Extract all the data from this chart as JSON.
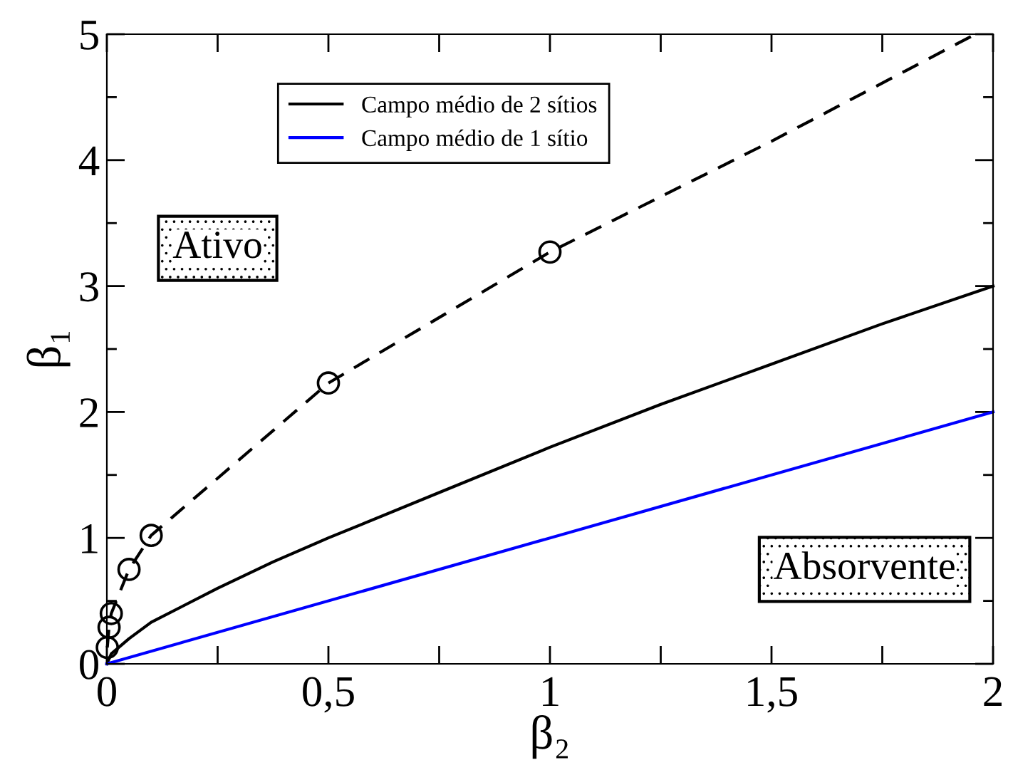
{
  "chart_data": {
    "type": "line",
    "xlabel": "β₂",
    "ylabel": "β₁",
    "xlim": [
      0,
      2
    ],
    "ylim": [
      0,
      5
    ],
    "xticks": [
      0,
      {
        "value": 0.25,
        "label": null
      },
      {
        "value": 0.5,
        "label": "0,5"
      },
      {
        "value": 0.75,
        "label": null
      },
      1,
      {
        "value": 1.25,
        "label": null
      },
      {
        "value": 1.5,
        "label": "1,5"
      },
      {
        "value": 1.75,
        "label": null
      },
      2
    ],
    "yticks": [
      0,
      {
        "value": 0.5,
        "label": null
      },
      1,
      {
        "value": 1.5,
        "label": null
      },
      2,
      {
        "value": 2.5,
        "label": null
      },
      3,
      {
        "value": 3.5,
        "label": null
      },
      4,
      {
        "value": 4.5,
        "label": null
      },
      5
    ],
    "grid": false,
    "legend": "top",
    "series": [
      {
        "line_style": "dashed",
        "marker": "none",
        "color": "#000000",
        "x": [
          0.001,
          0.005,
          0.01,
          0.05,
          0.1,
          0.5,
          1,
          1.5,
          1.96
        ],
        "values": [
          0.13,
          0.29,
          0.4,
          0.75,
          1.02,
          2.23,
          3.27,
          4.15,
          5.0
        ]
      },
      {
        "type": "scatter",
        "marker": "circle",
        "color": "#000000",
        "x": [
          0.001,
          0.005,
          0.01,
          0.05,
          0.1,
          0.5,
          1
        ],
        "values": [
          0.13,
          0.29,
          0.4,
          0.75,
          1.02,
          2.23,
          3.27
        ]
      },
      {
        "name": "Campo médio de 2 sítios",
        "line_style": "solid",
        "marker": "none",
        "color": "#000000",
        "x": [
          0,
          0.01,
          0.05,
          0.1,
          0.25,
          0.375,
          0.5,
          0.75,
          1,
          1.25,
          1.5,
          1.75,
          2
        ],
        "values": [
          0,
          0.08,
          0.2,
          0.33,
          0.6,
          0.81,
          1.0,
          1.36,
          1.72,
          2.06,
          2.38,
          2.7,
          3.0
        ]
      },
      {
        "name": "Campo médio de 1 sítio",
        "line_style": "solid",
        "marker": "none",
        "color": "#0000ff",
        "x": [
          0,
          2
        ],
        "values": [
          0,
          2
        ]
      }
    ],
    "annotations": [
      "Ativo",
      "Absorvente"
    ]
  }
}
